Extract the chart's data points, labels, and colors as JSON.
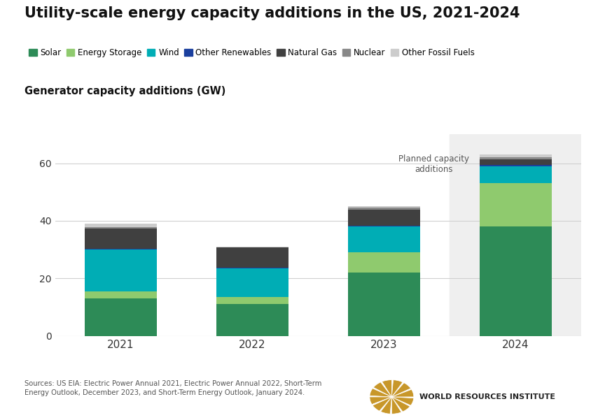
{
  "title": "Utility-scale energy capacity additions in the US, 2021-2024",
  "ylabel": "Generator capacity additions (GW)",
  "years": [
    "2021",
    "2022",
    "2023",
    "2024"
  ],
  "categories": [
    "Solar",
    "Energy Storage",
    "Wind",
    "Other Renewables",
    "Natural Gas",
    "Nuclear",
    "Other Fossil Fuels"
  ],
  "colors": [
    "#2d8b57",
    "#8fca6e",
    "#00adb5",
    "#1a3f9e",
    "#404040",
    "#888888",
    "#cccccc"
  ],
  "data": {
    "Solar": [
      13.0,
      11.0,
      22.0,
      38.0
    ],
    "Energy Storage": [
      2.5,
      2.5,
      7.0,
      15.0
    ],
    "Wind": [
      14.5,
      10.0,
      9.0,
      6.0
    ],
    "Other Renewables": [
      0.3,
      0.3,
      0.3,
      0.3
    ],
    "Natural Gas": [
      7.0,
      7.0,
      5.5,
      2.0
    ],
    "Nuclear": [
      0.5,
      0.0,
      0.7,
      0.7
    ],
    "Other Fossil Fuels": [
      1.2,
      0.2,
      0.5,
      1.0
    ]
  },
  "planned_bar_index": 3,
  "planned_label": "Planned capacity\nadditions",
  "ylim": [
    0,
    70
  ],
  "yticks": [
    0,
    20,
    40,
    60
  ],
  "background_color": "#ffffff",
  "planned_bg_color": "#efefef",
  "title_fontsize": 15,
  "legend_fontsize": 8.5,
  "axis_label_fontsize": 10.5
}
